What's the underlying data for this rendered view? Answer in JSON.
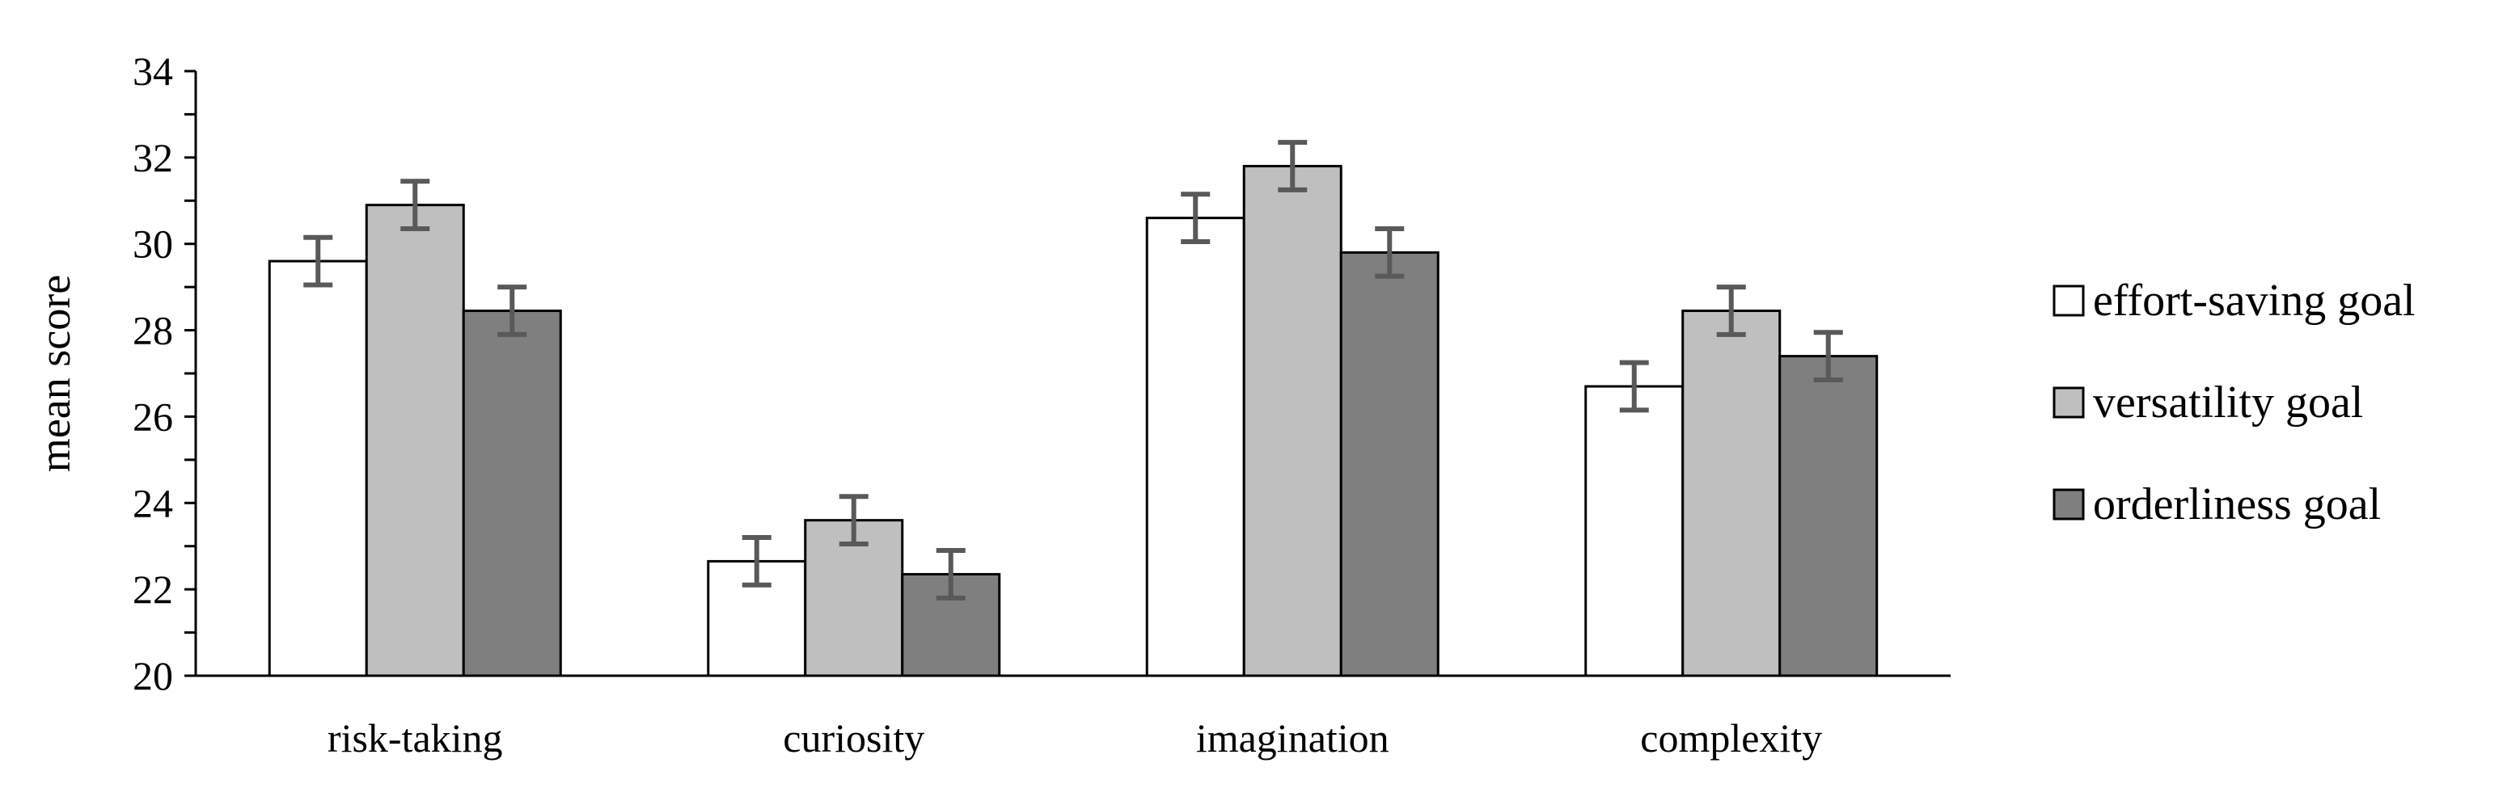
{
  "chart_data": {
    "type": "bar",
    "title": "",
    "xlabel": "",
    "ylabel": "mean score",
    "ylim": [
      20,
      34
    ],
    "yticks": [
      "20",
      "22",
      "24",
      "26",
      "28",
      "30",
      "32",
      "34"
    ],
    "categories": [
      "risk-taking",
      "curiosity",
      "imagination",
      "complexity"
    ],
    "legend_position": "right",
    "series": [
      {
        "name": "effort-saving goal",
        "color": "#ffffff",
        "values": [
          29.6,
          22.65,
          30.6,
          26.7
        ],
        "errors": [
          0.55,
          0.55,
          0.55,
          0.55
        ]
      },
      {
        "name": "versatility goal",
        "color": "#bfbfbf",
        "values": [
          30.9,
          23.6,
          31.8,
          28.45
        ],
        "errors": [
          0.55,
          0.55,
          0.55,
          0.55
        ]
      },
      {
        "name": "orderliness goal",
        "color": "#7f7f7f",
        "values": [
          28.45,
          22.35,
          29.8,
          27.4
        ],
        "errors": [
          0.55,
          0.55,
          0.55,
          0.55
        ]
      }
    ]
  }
}
